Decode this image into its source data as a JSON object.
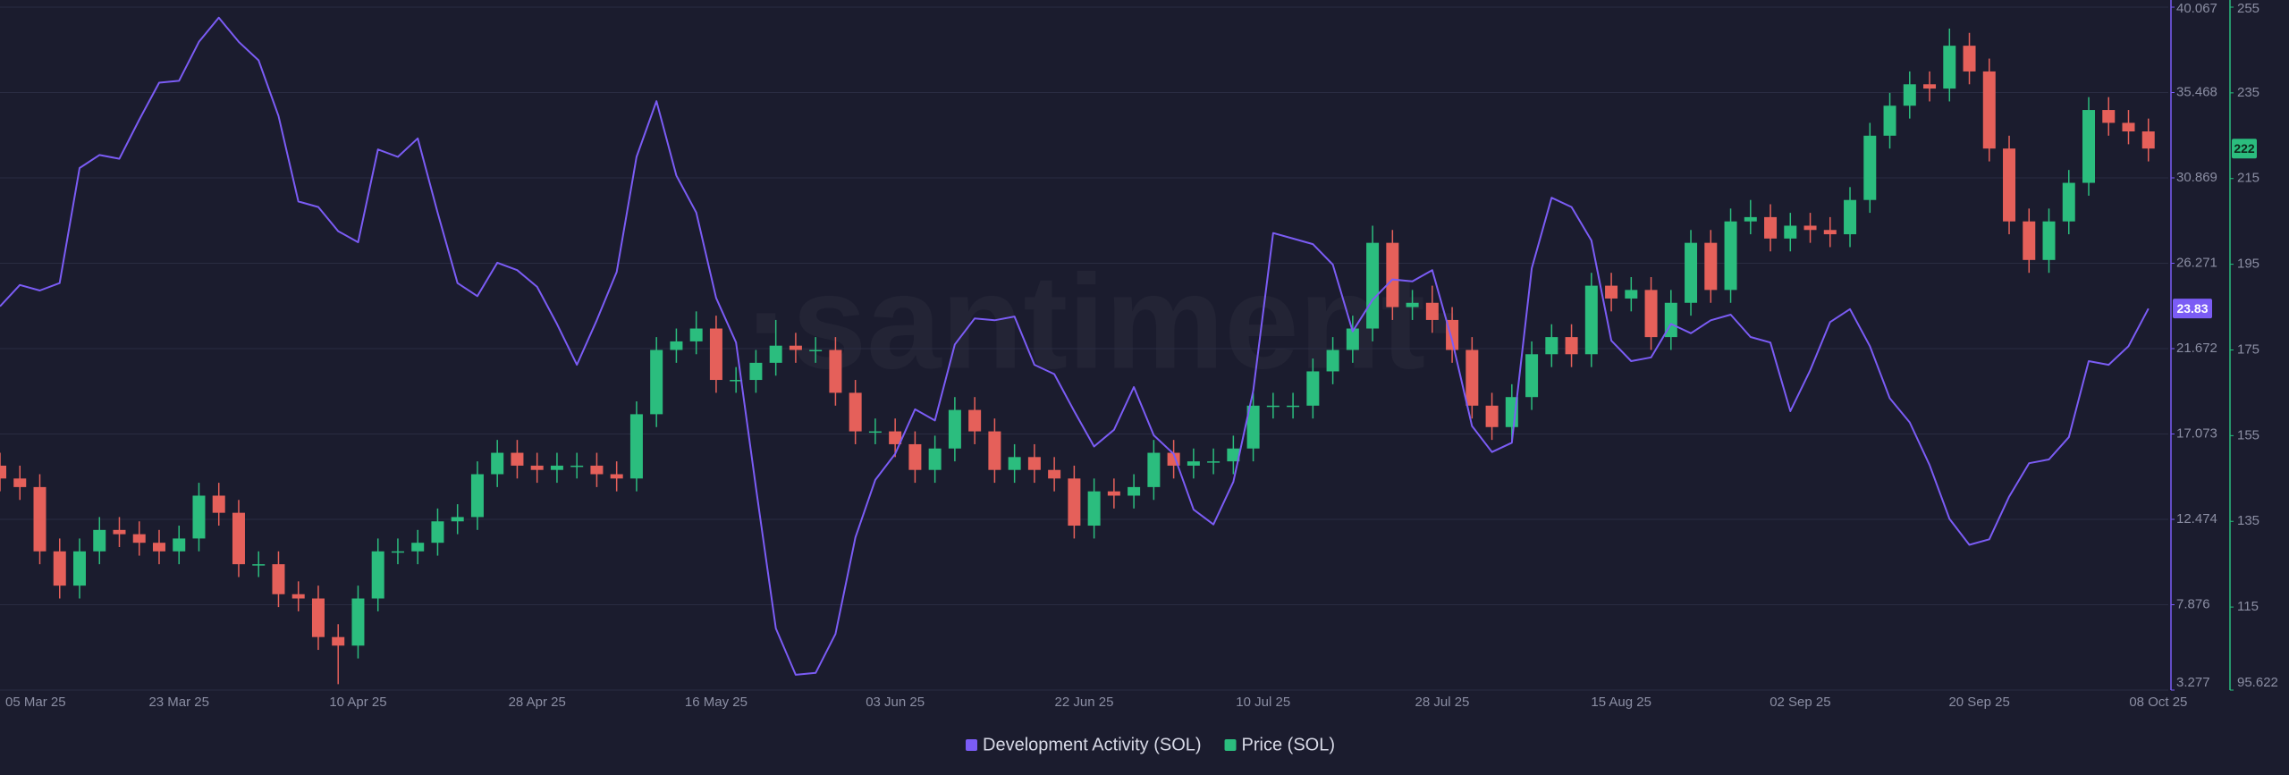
{
  "chart_data": {
    "type": "combo",
    "watermark": "·santiment·",
    "x": [
      "2025-03-05",
      "2025-03-07",
      "2025-03-09",
      "2025-03-11",
      "2025-03-13",
      "2025-03-15",
      "2025-03-17",
      "2025-03-19",
      "2025-03-21",
      "2025-03-23",
      "2025-03-25",
      "2025-03-27",
      "2025-03-29",
      "2025-03-31",
      "2025-04-02",
      "2025-04-04",
      "2025-04-06",
      "2025-04-08",
      "2025-04-10",
      "2025-04-12",
      "2025-04-14",
      "2025-04-16",
      "2025-04-18",
      "2025-04-20",
      "2025-04-22",
      "2025-04-24",
      "2025-04-26",
      "2025-04-28",
      "2025-04-30",
      "2025-05-02",
      "2025-05-04",
      "2025-05-06",
      "2025-05-08",
      "2025-05-10",
      "2025-05-12",
      "2025-05-14",
      "2025-05-16",
      "2025-05-18",
      "2025-05-20",
      "2025-05-22",
      "2025-05-24",
      "2025-05-26",
      "2025-05-28",
      "2025-05-30",
      "2025-06-01",
      "2025-06-03",
      "2025-06-05",
      "2025-06-07",
      "2025-06-09",
      "2025-06-11",
      "2025-06-13",
      "2025-06-15",
      "2025-06-17",
      "2025-06-19",
      "2025-06-21",
      "2025-06-23",
      "2025-06-25",
      "2025-06-27",
      "2025-06-29",
      "2025-07-01",
      "2025-07-03",
      "2025-07-05",
      "2025-07-07",
      "2025-07-09",
      "2025-07-11",
      "2025-07-13",
      "2025-07-15",
      "2025-07-17",
      "2025-07-19",
      "2025-07-21",
      "2025-07-23",
      "2025-07-25",
      "2025-07-27",
      "2025-07-29",
      "2025-07-31",
      "2025-08-02",
      "2025-08-04",
      "2025-08-06",
      "2025-08-08",
      "2025-08-10",
      "2025-08-12",
      "2025-08-14",
      "2025-08-16",
      "2025-08-18",
      "2025-08-20",
      "2025-08-22",
      "2025-08-24",
      "2025-08-26",
      "2025-08-28",
      "2025-08-30",
      "2025-09-01",
      "2025-09-03",
      "2025-09-05",
      "2025-09-07",
      "2025-09-09",
      "2025-09-11",
      "2025-09-13",
      "2025-09-15",
      "2025-09-17",
      "2025-09-19",
      "2025-09-21",
      "2025-09-23",
      "2025-09-25",
      "2025-09-27",
      "2025-09-29",
      "2025-10-01",
      "2025-10-03",
      "2025-10-05",
      "2025-10-07"
    ],
    "xlim": [
      "2025-03-05",
      "2025-10-09"
    ],
    "xticks": [
      {
        "value": "2025-03-05",
        "label": "05 Mar 25"
      },
      {
        "value": "2025-03-23",
        "label": "23 Mar 25"
      },
      {
        "value": "2025-04-10",
        "label": "10 Apr 25"
      },
      {
        "value": "2025-04-28",
        "label": "28 Apr 25"
      },
      {
        "value": "2025-05-16",
        "label": "16 May 25"
      },
      {
        "value": "2025-06-03",
        "label": "03 Jun 25"
      },
      {
        "value": "2025-06-22",
        "label": "22 Jun 25"
      },
      {
        "value": "2025-07-10",
        "label": "10 Jul 25"
      },
      {
        "value": "2025-07-28",
        "label": "28 Jul 25"
      },
      {
        "value": "2025-08-15",
        "label": "15 Aug 25"
      },
      {
        "value": "2025-09-02",
        "label": "02 Sep 25"
      },
      {
        "value": "2025-09-20",
        "label": "20 Sep 25"
      },
      {
        "value": "2025-10-08",
        "label": "08 Oct 25"
      }
    ],
    "ylim": [
      3.277,
      40.067
    ],
    "yticks": [
      40.067,
      35.468,
      30.869,
      26.271,
      21.672,
      17.073,
      12.474,
      7.876,
      3.277
    ],
    "y2lim": [
      95.622,
      255
    ],
    "y2ticks": [
      255,
      235,
      215,
      195,
      175,
      155,
      135,
      115,
      95.622
    ],
    "grid": true,
    "legend": "bottom",
    "series": [
      {
        "name": "Development Activity (SOL)",
        "type": "line",
        "color": "#7b5cf5",
        "values": [
          23.95,
          25.1,
          24.8,
          25.2,
          31.4,
          32.1,
          31.9,
          34.0,
          36.0,
          36.1,
          38.2,
          39.5,
          38.2,
          37.2,
          34.2,
          29.6,
          29.3,
          28.0,
          27.4,
          32.4,
          32.0,
          33.0,
          29.0,
          25.2,
          24.5,
          26.3,
          25.9,
          25.0,
          23.0,
          20.8,
          23.2,
          25.8,
          32.0,
          35.0,
          31.0,
          29.0,
          24.4,
          22.0,
          14.2,
          6.6,
          4.1,
          4.2,
          6.3,
          11.5,
          14.6,
          16.0,
          18.4,
          17.8,
          21.9,
          23.3,
          23.2,
          23.4,
          20.8,
          20.3,
          18.3,
          16.4,
          17.3,
          19.6,
          17.0,
          16.0,
          13.0,
          12.2,
          14.5,
          19.4,
          27.9,
          27.6,
          27.3,
          26.2,
          22.6,
          24.3,
          25.4,
          25.3,
          25.9,
          22.1,
          17.5,
          16.1,
          16.6,
          26.0,
          29.8,
          29.3,
          27.5,
          22.1,
          21.0,
          21.2,
          23.0,
          22.5,
          23.2,
          23.5,
          22.3,
          22.0,
          18.3,
          20.5,
          23.1,
          23.8,
          21.8,
          19.0,
          17.7,
          15.4,
          12.5,
          11.1,
          11.4,
          13.7,
          15.5,
          15.7,
          16.9,
          21.0,
          20.8,
          21.8,
          23.83
        ]
      },
      {
        "name": "Price (SOL)",
        "type": "candlestick",
        "axis": "y2",
        "color": "#2bbd7e",
        "down_color": "#e5605a",
        "open": [
          148,
          145,
          143,
          128,
          120,
          128,
          133,
          132,
          130,
          128,
          131,
          141,
          137,
          125,
          125,
          118,
          117,
          108,
          106,
          117,
          128,
          128,
          130,
          135,
          136,
          146,
          151,
          148,
          147,
          148,
          148,
          146,
          145,
          160,
          175,
          177,
          180,
          168,
          168,
          172,
          176,
          175,
          175,
          165,
          156,
          156,
          153,
          147,
          152,
          161,
          156,
          147,
          150,
          147,
          145,
          134,
          142,
          141,
          143,
          151,
          148,
          149,
          149,
          152,
          162,
          162,
          162,
          170,
          175,
          180,
          200,
          185,
          186,
          182,
          175,
          162,
          157,
          164,
          174,
          178,
          174,
          190,
          187,
          189,
          178,
          186,
          200,
          189,
          205,
          206,
          201,
          204,
          203,
          202,
          210,
          225,
          232,
          237,
          236,
          246,
          240,
          222,
          205,
          196,
          205,
          214,
          231,
          228,
          226
        ],
        "high": [
          151,
          148,
          146,
          131,
          131,
          136,
          136,
          135,
          133,
          134,
          144,
          144,
          140,
          128,
          128,
          121,
          120,
          111,
          120,
          131,
          131,
          133,
          138,
          139,
          149,
          154,
          154,
          151,
          151,
          151,
          151,
          149,
          163,
          178,
          180,
          184,
          183,
          171,
          175,
          182,
          179,
          178,
          178,
          168,
          159,
          159,
          156,
          155,
          164,
          164,
          159,
          153,
          153,
          150,
          148,
          145,
          145,
          146,
          154,
          154,
          152,
          152,
          155,
          165,
          165,
          165,
          173,
          178,
          183,
          204,
          203,
          189,
          190,
          185,
          178,
          165,
          167,
          177,
          181,
          181,
          193,
          193,
          192,
          192,
          189,
          203,
          203,
          208,
          210,
          209,
          207,
          207,
          206,
          213,
          228,
          235,
          240,
          240,
          250,
          249,
          243,
          225,
          208,
          208,
          217,
          234,
          234,
          231,
          229
        ],
        "low": [
          142,
          140,
          125,
          117,
          117,
          125,
          129,
          127,
          125,
          125,
          128,
          134,
          122,
          122,
          115,
          114,
          105,
          97,
          103,
          114,
          125,
          125,
          127,
          132,
          133,
          143,
          145,
          144,
          144,
          145,
          143,
          142,
          142,
          157,
          172,
          174,
          165,
          165,
          165,
          169,
          172,
          172,
          162,
          153,
          153,
          150,
          144,
          144,
          149,
          153,
          144,
          144,
          144,
          142,
          131,
          131,
          138,
          138,
          140,
          145,
          145,
          146,
          146,
          149,
          159,
          159,
          159,
          167,
          172,
          177,
          182,
          182,
          179,
          172,
          159,
          154,
          154,
          161,
          171,
          171,
          171,
          184,
          184,
          175,
          175,
          183,
          186,
          186,
          202,
          198,
          198,
          200,
          199,
          199,
          207,
          222,
          229,
          233,
          233,
          237,
          219,
          202,
          193,
          193,
          202,
          211,
          225,
          223,
          219
        ],
        "close": [
          145,
          143,
          128,
          120,
          128,
          133,
          132,
          130,
          128,
          131,
          141,
          137,
          125,
          125,
          118,
          117,
          108,
          106,
          117,
          128,
          128,
          130,
          135,
          136,
          146,
          151,
          148,
          147,
          148,
          148,
          146,
          145,
          160,
          175,
          177,
          180,
          168,
          168,
          172,
          176,
          175,
          175,
          165,
          156,
          156,
          153,
          147,
          152,
          161,
          156,
          147,
          150,
          147,
          145,
          134,
          142,
          141,
          143,
          151,
          148,
          149,
          149,
          152,
          162,
          162,
          162,
          170,
          175,
          180,
          200,
          185,
          186,
          182,
          175,
          162,
          157,
          164,
          174,
          178,
          174,
          190,
          187,
          189,
          178,
          186,
          200,
          189,
          205,
          206,
          201,
          204,
          203,
          202,
          210,
          225,
          232,
          237,
          236,
          246,
          240,
          222,
          205,
          196,
          205,
          214,
          231,
          228,
          226,
          222
        ]
      }
    ]
  }
}
